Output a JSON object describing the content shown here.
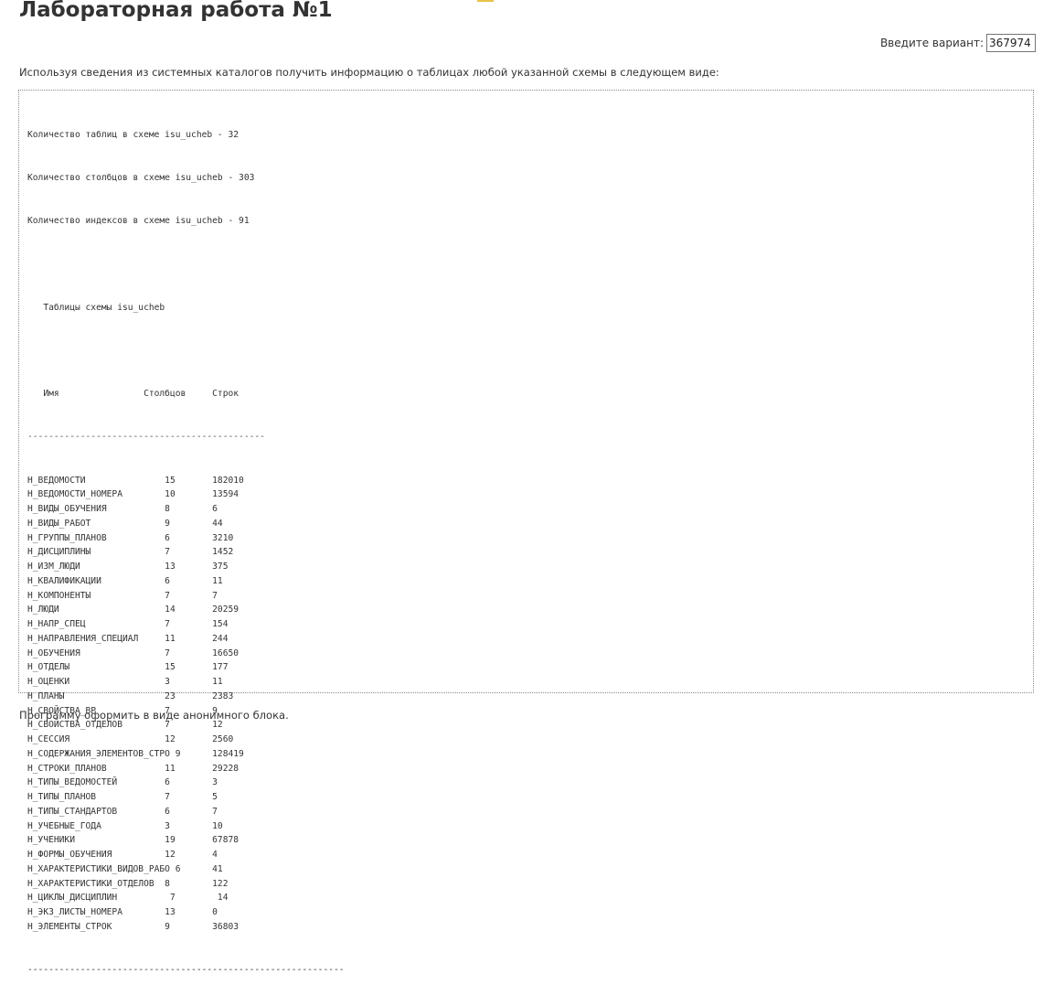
{
  "page": {
    "title": "Лабораторная работа №1",
    "variant_label": "Введите вариант:",
    "variant_value": "367974",
    "task_text": "Используя сведения из системных каталогов получить информацию о таблицах любой указанной схемы в следующем виде:",
    "footer_text": "Программу оформить в виде анонимного блока."
  },
  "output": {
    "summary": [
      "Количество таблиц в схеме isu_ucheb - 32",
      "Количество столбцов в схеме isu_ucheb - 303",
      "Количество индексов в схеме isu_ucheb - 91"
    ],
    "table_caption": "   Таблицы схемы isu_ucheb",
    "header_line": "   Имя                Столбцов     Строк",
    "separator_top": "---------------------------------------------",
    "separator_bottom": "------------------------------------------------------------",
    "rows": [
      "Н_ВЕДОМОСТИ               15       182010",
      "Н_ВЕДОМОСТИ_НОМЕРА        10       13594",
      "Н_ВИДЫ_ОБУЧЕНИЯ           8        6",
      "Н_ВИДЫ_РАБОТ              9        44",
      "Н_ГРУППЫ_ПЛАНОВ           6        3210",
      "Н_ДИСЦИПЛИНЫ              7        1452",
      "Н_ИЗМ_ЛЮДИ                13       375",
      "Н_КВАЛИФИКАЦИИ            6        11",
      "Н_КОМПОНЕНТЫ              7        7",
      "Н_ЛЮДИ                    14       20259",
      "Н_НАПР_СПЕЦ               7        154",
      "Н_НАПРАВЛЕНИЯ_СПЕЦИАЛ     11       244",
      "Н_ОБУЧЕНИЯ                7        16650",
      "Н_ОТДЕЛЫ                  15       177",
      "Н_ОЦЕНКИ                  3        11",
      "Н_ПЛАНЫ                   23       2383",
      "Н_СВОЙСТВА_ВР             7        9",
      "Н_СВОЙСТВА_ОТДЕЛОВ        7        12",
      "Н_СЕССИЯ                  12       2560",
      "Н_СОДЕРЖАНИЯ_ЭЛЕМЕНТОВ_СТРО 9      128419",
      "Н_СТРОКИ_ПЛАНОВ           11       29228",
      "Н_ТИПЫ_ВЕДОМОСТЕЙ         6        3",
      "Н_ТИПЫ_ПЛАНОВ             7        5",
      "Н_ТИПЫ_СТАНДАРТОВ         6        7",
      "Н_УЧЕБНЫЕ_ГОДА            3        10",
      "Н_УЧЕНИКИ                 19       67878",
      "Н_ФОРМЫ_ОБУЧЕНИЯ          12       4",
      "Н_ХАРАКТЕРИСТИКИ_ВИДОВ_РАБО 6      41",
      "Н_ХАРАКТЕРИСТИКИ_ОТДЕЛОВ  8        122",
      "Н_ЦИКЛЫ_ДИСЦИПЛИН          7        14",
      "Н_ЭКЗ_ЛИСТЫ_НОМЕРА        13       0",
      "Н_ЭЛЕМЕНТЫ_СТРОК          9        36803"
    ]
  }
}
